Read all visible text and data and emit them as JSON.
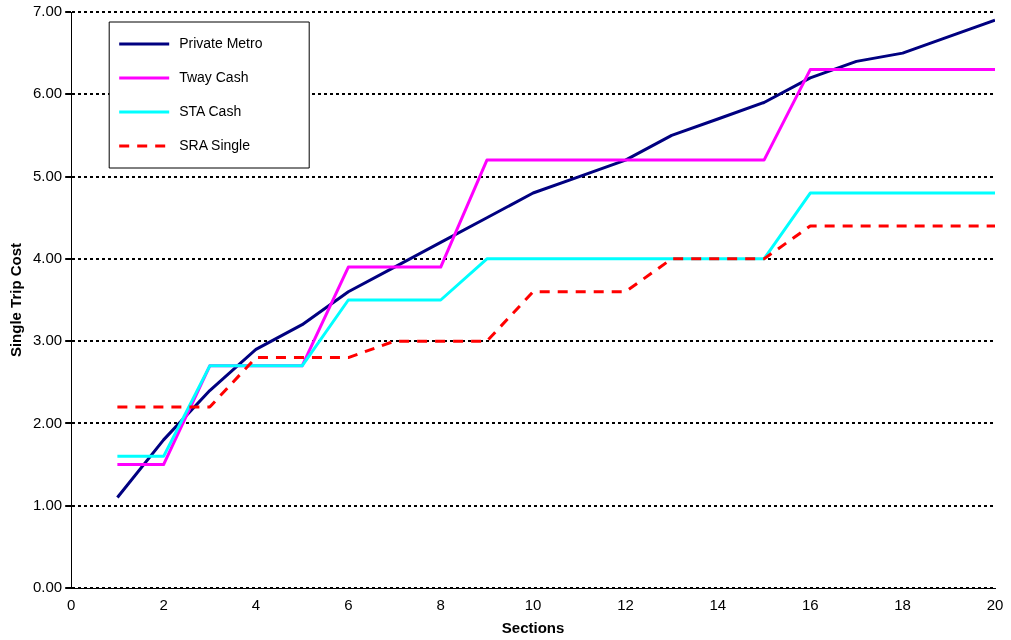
{
  "chart_data": {
    "type": "line",
    "xlabel": "Sections",
    "ylabel": "Single Trip Cost",
    "x": [
      1,
      2,
      3,
      4,
      5,
      6,
      7,
      8,
      9,
      10,
      11,
      12,
      13,
      14,
      15,
      16,
      17,
      18,
      19,
      20
    ],
    "series": [
      {
        "name": "Private Metro",
        "color": "#000080",
        "values": [
          1.1,
          1.8,
          2.4,
          2.9,
          3.2,
          3.6,
          3.9,
          4.2,
          4.5,
          4.8,
          5.0,
          5.2,
          5.5,
          5.7,
          5.9,
          6.2,
          6.4,
          6.5,
          6.7,
          6.9
        ]
      },
      {
        "name": "Tway Cash",
        "color": "#ff00ff",
        "values": [
          1.5,
          1.5,
          2.7,
          2.7,
          2.7,
          3.9,
          3.9,
          3.9,
          5.2,
          5.2,
          5.2,
          5.2,
          5.2,
          5.2,
          5.2,
          6.3,
          6.3,
          6.3,
          6.3,
          6.3
        ]
      },
      {
        "name": "STA Cash",
        "color": "#00ffff",
        "values": [
          1.6,
          1.6,
          2.7,
          2.7,
          2.7,
          3.5,
          3.5,
          3.5,
          4.0,
          4.0,
          4.0,
          4.0,
          4.0,
          4.0,
          4.0,
          4.8,
          4.8,
          4.8,
          4.8,
          4.8
        ]
      },
      {
        "name": "SRA Single",
        "color": "#ff0000",
        "line_style": "dashed",
        "values": [
          2.2,
          2.2,
          2.2,
          2.8,
          2.8,
          2.8,
          3.0,
          3.0,
          3.0,
          3.6,
          3.6,
          3.6,
          4.0,
          4.0,
          4.0,
          4.4,
          4.4,
          4.4,
          4.4,
          4.4
        ]
      }
    ],
    "xlim": [
      0,
      20
    ],
    "xticks": [
      0,
      2,
      4,
      6,
      8,
      10,
      12,
      14,
      16,
      18,
      20
    ],
    "ylim": [
      0,
      7
    ],
    "yticks": [
      {
        "value": 0,
        "label": "0.00"
      },
      {
        "value": 1,
        "label": "1.00"
      },
      {
        "value": 2,
        "label": "2.00"
      },
      {
        "value": 3,
        "label": "3.00"
      },
      {
        "value": 4,
        "label": "4.00"
      },
      {
        "value": 5,
        "label": "5.00"
      },
      {
        "value": 6,
        "label": "6.00"
      },
      {
        "value": 7,
        "label": "7.00"
      }
    ],
    "grid": "y",
    "legend": "top left",
    "marker": "none",
    "line_style": "solid"
  }
}
